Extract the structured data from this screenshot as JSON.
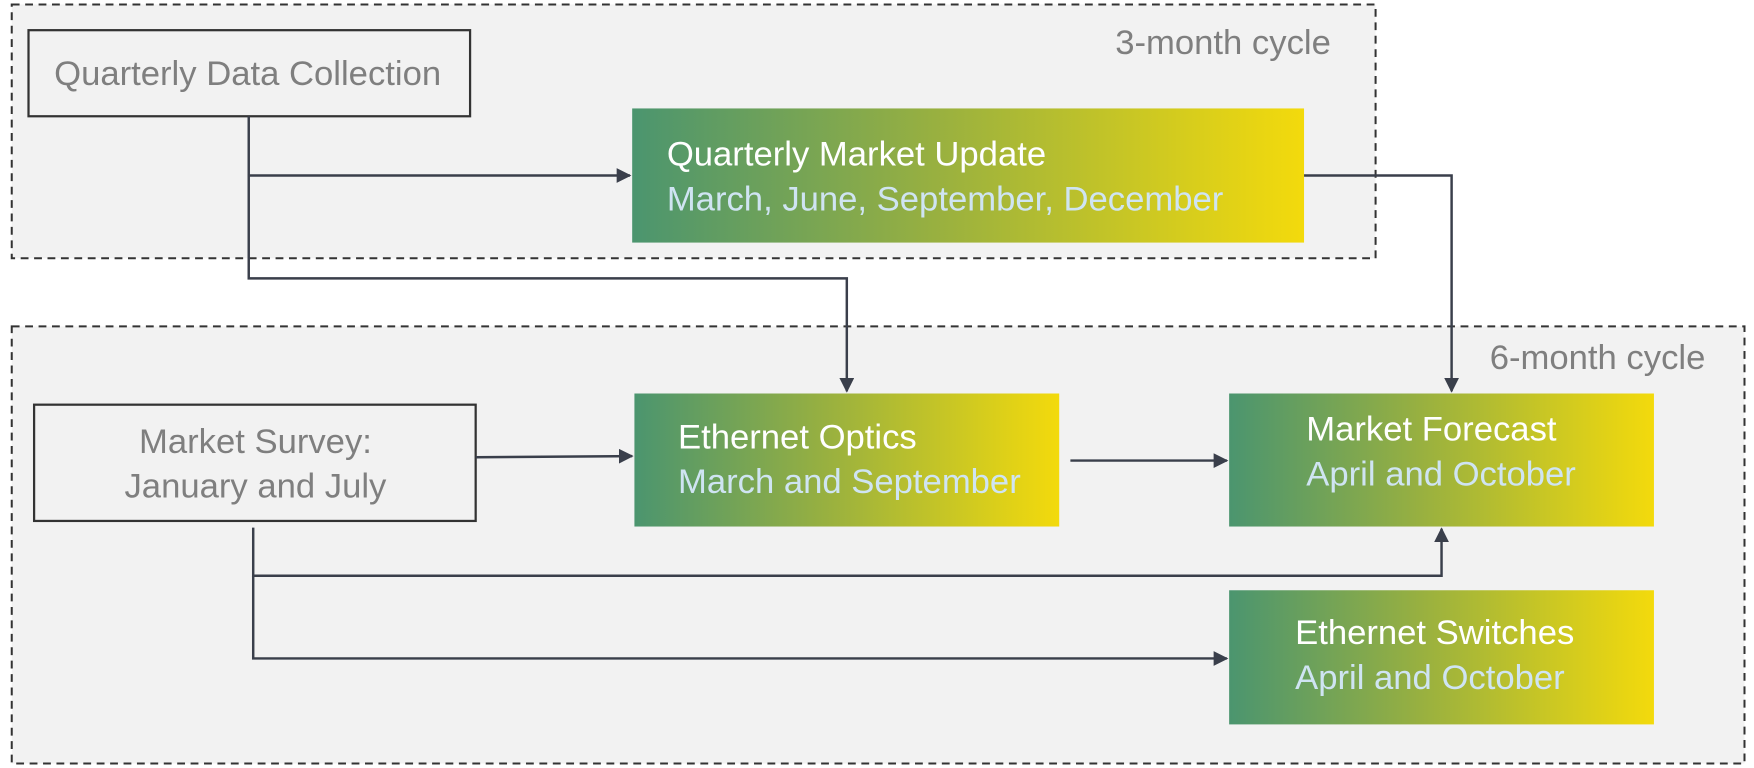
{
  "groups": [
    {
      "label": "3-month cycle"
    },
    {
      "label": "6-month cycle"
    }
  ],
  "nodes": [
    {
      "lines": [
        "Quarterly Data Collection"
      ]
    },
    {
      "lines": [
        "Quarterly Market Update",
        "March, June, September, December"
      ]
    },
    {
      "lines": [
        "Market Survey:",
        "January and July"
      ]
    },
    {
      "lines": [
        "Ethernet Optics",
        "March and September"
      ]
    },
    {
      "lines": [
        "Market Forecast",
        "April and October"
      ]
    },
    {
      "lines": [
        "Ethernet Switches",
        "April and October"
      ]
    }
  ]
}
